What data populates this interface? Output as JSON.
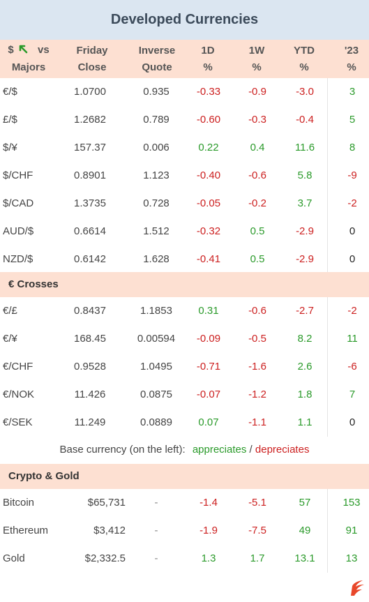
{
  "title": "Developed Currencies",
  "header": {
    "pair_dollar": "$",
    "pair_vs": "vs",
    "pair_majors": "Majors",
    "friday_1": "Friday",
    "friday_2": "Close",
    "inverse_1": "Inverse",
    "inverse_2": "Quote",
    "d1_1": "1D",
    "d1_2": "%",
    "w1_1": "1W",
    "w1_2": "%",
    "ytd_1": "YTD",
    "ytd_2": "%",
    "y23_1": "'23",
    "y23_2": "%"
  },
  "majors": [
    {
      "pair": "€/$",
      "close": "1.0700",
      "inverse": "0.935",
      "d1": "-0.33",
      "w1": "-0.9",
      "ytd": "-3.0",
      "y23": "3"
    },
    {
      "pair": "£/$",
      "close": "1.2682",
      "inverse": "0.789",
      "d1": "-0.60",
      "w1": "-0.3",
      "ytd": "-0.4",
      "y23": "5"
    },
    {
      "pair": "$/¥",
      "close": "157.37",
      "inverse": "0.006",
      "d1": "0.22",
      "w1": "0.4",
      "ytd": "11.6",
      "y23": "8"
    },
    {
      "pair": "$/CHF",
      "close": "0.8901",
      "inverse": "1.123",
      "d1": "-0.40",
      "w1": "-0.6",
      "ytd": "5.8",
      "y23": "-9"
    },
    {
      "pair": "$/CAD",
      "close": "1.3735",
      "inverse": "0.728",
      "d1": "-0.05",
      "w1": "-0.2",
      "ytd": "3.7",
      "y23": "-2"
    },
    {
      "pair": "AUD/$",
      "close": "0.6614",
      "inverse": "1.512",
      "d1": "-0.32",
      "w1": "0.5",
      "ytd": "-2.9",
      "y23": "0"
    },
    {
      "pair": "NZD/$",
      "close": "0.6142",
      "inverse": "1.628",
      "d1": "-0.41",
      "w1": "0.5",
      "ytd": "-2.9",
      "y23": "0"
    }
  ],
  "crosses_title": "€ Crosses",
  "crosses": [
    {
      "pair": "€/£",
      "close": "0.8437",
      "inverse": "1.1853",
      "d1": "0.31",
      "w1": "-0.6",
      "ytd": "-2.7",
      "y23": "-2"
    },
    {
      "pair": "€/¥",
      "close": "168.45",
      "inverse": "0.00594",
      "d1": "-0.09",
      "w1": "-0.5",
      "ytd": "8.2",
      "y23": "11"
    },
    {
      "pair": "€/CHF",
      "close": "0.9528",
      "inverse": "1.0495",
      "d1": "-0.71",
      "w1": "-1.6",
      "ytd": "2.6",
      "y23": "-6"
    },
    {
      "pair": "€/NOK",
      "close": "11.426",
      "inverse": "0.0875",
      "d1": "-0.07",
      "w1": "-1.2",
      "ytd": "1.8",
      "y23": "7"
    },
    {
      "pair": "€/SEK",
      "close": "11.249",
      "inverse": "0.0889",
      "d1": "0.07",
      "w1": "-1.1",
      "ytd": "1.1",
      "y23": "0"
    }
  ],
  "legend": {
    "prefix": "Base currency (on the left):",
    "up": "appreciates",
    "sep": "/",
    "down": "depreciates"
  },
  "crypto_title": "Crypto & Gold",
  "crypto": [
    {
      "pair": "Bitcoin",
      "close": "$65,731",
      "inverse": "-",
      "d1": "-1.4",
      "w1": "-5.1",
      "ytd": "57",
      "y23": "153"
    },
    {
      "pair": "Ethereum",
      "close": "$3,412",
      "inverse": "-",
      "d1": "-1.9",
      "w1": "-7.5",
      "ytd": "49",
      "y23": "91"
    },
    {
      "pair": "Gold",
      "close": "$2,332.5",
      "inverse": "-",
      "d1": "1.3",
      "w1": "1.7",
      "ytd": "13.1",
      "y23": "13"
    }
  ],
  "colors": {
    "positive": "#2a9a2a",
    "negative": "#cc1f1f",
    "header_bg": "#fde0d2",
    "title_bg": "#dbe6f1"
  },
  "icons": {
    "header_arrow": "up-left-arrow-icon",
    "logo": "flame-logo-icon"
  }
}
